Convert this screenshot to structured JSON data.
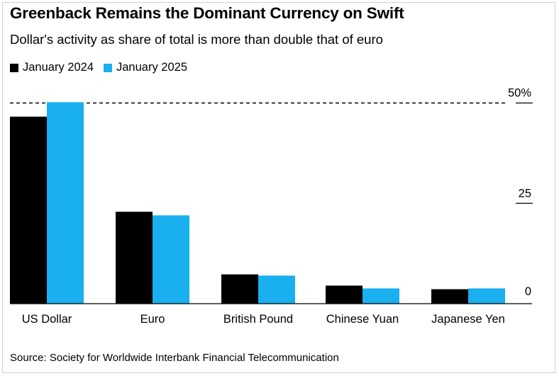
{
  "title": "Greenback Remains the Dominant Currency on Swift",
  "subtitle": "Dollar's activity as share of total is more than double that of euro",
  "source": "Source: Society for Worldwide Interbank Financial Telecommunication",
  "chart_data": {
    "type": "bar",
    "categories": [
      "US Dollar",
      "Euro",
      "British Pound",
      "Chinese Yuan",
      "Japanese Yen"
    ],
    "series": [
      {
        "name": "January 2024",
        "color": "#000000",
        "values": [
          46.6,
          22.9,
          7.3,
          4.5,
          3.6
        ]
      },
      {
        "name": "January 2025",
        "color": "#1aafef",
        "values": [
          50.2,
          22.0,
          7.0,
          3.8,
          3.8
        ]
      }
    ],
    "y_ticks": [
      {
        "value": 50,
        "label": "50%"
      },
      {
        "value": 25,
        "label": "25"
      },
      {
        "value": 0,
        "label": "0"
      }
    ],
    "ylim": [
      0,
      55
    ],
    "reference_line": 50,
    "legend_position": "top-left",
    "grid": false
  }
}
